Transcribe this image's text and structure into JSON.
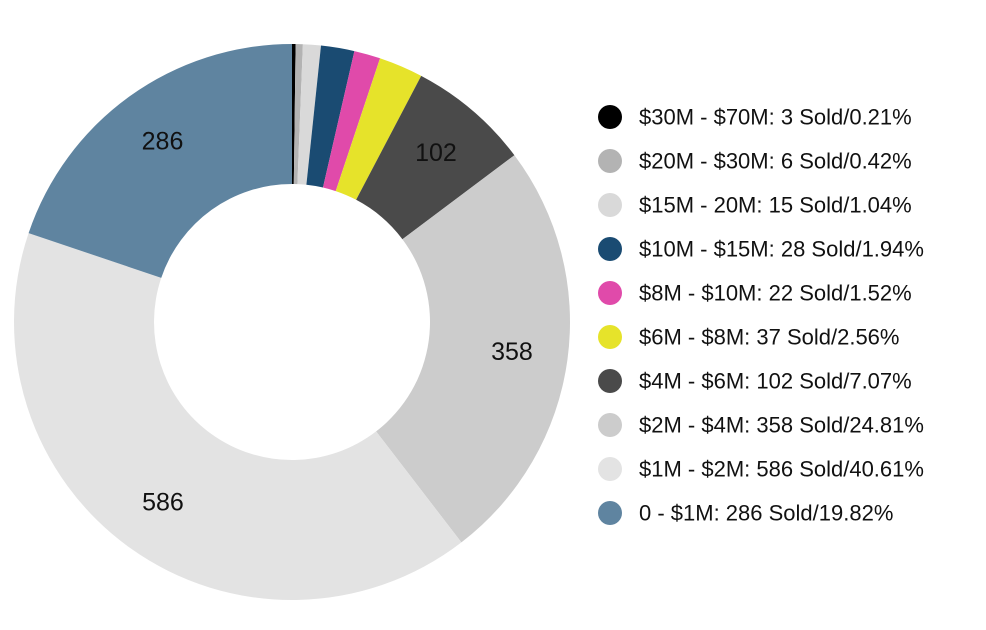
{
  "chart_data": {
    "type": "pie",
    "subtype": "donut",
    "title": "",
    "legend_position": "right",
    "slices": [
      {
        "label": "$30M - $70M: 3 Sold/0.21%",
        "value": 3,
        "percent": 0.21,
        "color": "#000000",
        "data_label": ""
      },
      {
        "label": "$20M - $30M: 6 Sold/0.42%",
        "value": 6,
        "percent": 0.42,
        "color": "#b3b3b3",
        "data_label": ""
      },
      {
        "label": "$15M - 20M: 15 Sold/1.04%",
        "value": 15,
        "percent": 1.04,
        "color": "#d9d9d9",
        "data_label": ""
      },
      {
        "label": "$10M - $15M: 28 Sold/1.94%",
        "value": 28,
        "percent": 1.94,
        "color": "#1a4b72",
        "data_label": ""
      },
      {
        "label": "$8M - $10M: 22 Sold/1.52%",
        "value": 22,
        "percent": 1.52,
        "color": "#e04aaa",
        "data_label": ""
      },
      {
        "label": "$6M - $8M: 37 Sold/2.56%",
        "value": 37,
        "percent": 2.56,
        "color": "#e6e32a",
        "data_label": ""
      },
      {
        "label": "$4M - $6M: 102 Sold/7.07%",
        "value": 102,
        "percent": 7.07,
        "color": "#4a4a4a",
        "data_label": "102"
      },
      {
        "label": "$2M - $4M: 358 Sold/24.81%",
        "value": 358,
        "percent": 24.81,
        "color": "#cccccc",
        "data_label": "358"
      },
      {
        "label": "$1M - $2M: 586 Sold/40.61%",
        "value": 586,
        "percent": 40.61,
        "color": "#e3e3e3",
        "data_label": "586"
      },
      {
        "label": "0 - $1M: 286 Sold/19.82%",
        "value": 286,
        "percent": 19.82,
        "color": "#5f84a0",
        "data_label": "286"
      }
    ]
  }
}
